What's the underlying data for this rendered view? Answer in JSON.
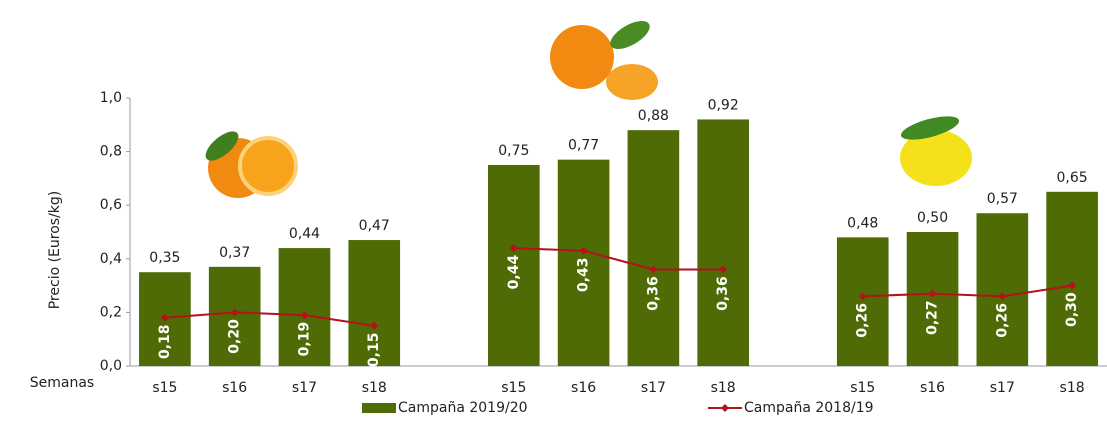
{
  "chart_data": {
    "type": "bar",
    "y_label": "Precio (Euros/kg)",
    "x_label": "Semanas",
    "categories": [
      "s15",
      "s16",
      "s17",
      "s18",
      null,
      "s15",
      "s16",
      "s17",
      "s18",
      null,
      "s15",
      "s16",
      "s17",
      "s18"
    ],
    "series": [
      {
        "name": "Campaña 2019/20",
        "type": "bar",
        "color": "#4e6b06",
        "values": [
          0.35,
          0.37,
          0.44,
          0.47,
          null,
          0.75,
          0.77,
          0.88,
          0.92,
          null,
          0.48,
          0.5,
          0.57,
          0.65
        ],
        "value_labels": [
          "0,35",
          "0,37",
          "0,44",
          "0,47",
          null,
          "0,75",
          "0,77",
          "0,88",
          "0,92",
          null,
          "0,48",
          "0,50",
          "0,57",
          "0,65"
        ]
      },
      {
        "name": "Campaña 2018/19",
        "type": "line",
        "color": "#b5121b",
        "values": [
          0.18,
          0.2,
          0.19,
          0.15,
          null,
          0.44,
          0.43,
          0.36,
          0.36,
          null,
          0.26,
          0.27,
          0.26,
          0.3
        ],
        "value_labels": [
          "0,18",
          "0,20",
          "0,19",
          "0,15",
          null,
          "0,44",
          "0,43",
          "0,36",
          "0,36",
          null,
          "0,26",
          "0,27",
          "0,26",
          "0,30"
        ]
      }
    ],
    "ylim": [
      0,
      1.0
    ],
    "yticks": [
      {
        "value": 0,
        "label": "0,0"
      },
      {
        "value": 0.2,
        "label": "0,2"
      },
      {
        "value": 0.4,
        "label": "0,4"
      },
      {
        "value": 0.6,
        "label": "0,6"
      },
      {
        "value": 0.8,
        "label": "0,8"
      },
      {
        "value": 1.0,
        "label": "1,0"
      }
    ],
    "legend": "bottom"
  }
}
